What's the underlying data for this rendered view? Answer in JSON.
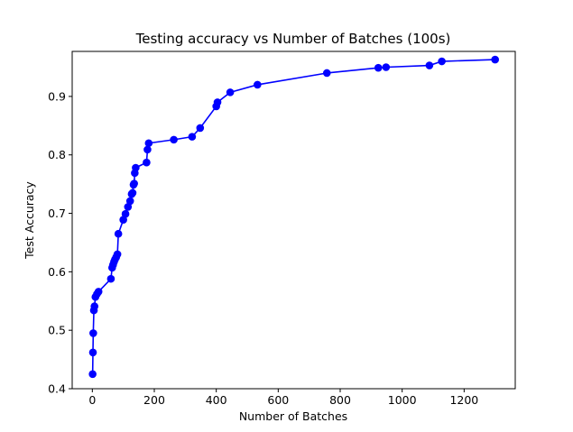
{
  "chart_data": {
    "type": "line",
    "title": "Testing accuracy vs Number of Batches (100s)",
    "xlabel": "Number of Batches",
    "ylabel": "Test Accuracy",
    "xlim": [
      -65,
      1365
    ],
    "ylim": [
      0.4,
      0.977
    ],
    "xticks": [
      0,
      200,
      400,
      600,
      800,
      1000,
      1200
    ],
    "yticks": [
      0.4,
      0.5,
      0.6,
      0.7,
      0.8,
      0.9
    ],
    "ytick_labels": [
      "0.4",
      "0.5",
      "0.6",
      "0.7",
      "0.8",
      "0.9"
    ],
    "grid": false,
    "marker": "circle",
    "series": [
      {
        "color": "#0000ff",
        "x": [
          1,
          2,
          3,
          5,
          7,
          10,
          15,
          20,
          60,
          64,
          67,
          70,
          73,
          77,
          81,
          84,
          100,
          107,
          115,
          122,
          127,
          130,
          133,
          135,
          137,
          140,
          175,
          178,
          182,
          263,
          322,
          348,
          400,
          404,
          445,
          533,
          757,
          923,
          948,
          1088,
          1128,
          1300
        ],
        "y": [
          0.425,
          0.462,
          0.495,
          0.534,
          0.541,
          0.557,
          0.562,
          0.566,
          0.588,
          0.607,
          0.612,
          0.617,
          0.621,
          0.625,
          0.63,
          0.665,
          0.689,
          0.699,
          0.711,
          0.721,
          0.733,
          0.735,
          0.749,
          0.751,
          0.769,
          0.778,
          0.787,
          0.809,
          0.82,
          0.826,
          0.831,
          0.846,
          0.883,
          0.89,
          0.907,
          0.92,
          0.94,
          0.949,
          0.95,
          0.953,
          0.96,
          0.963
        ]
      }
    ]
  }
}
